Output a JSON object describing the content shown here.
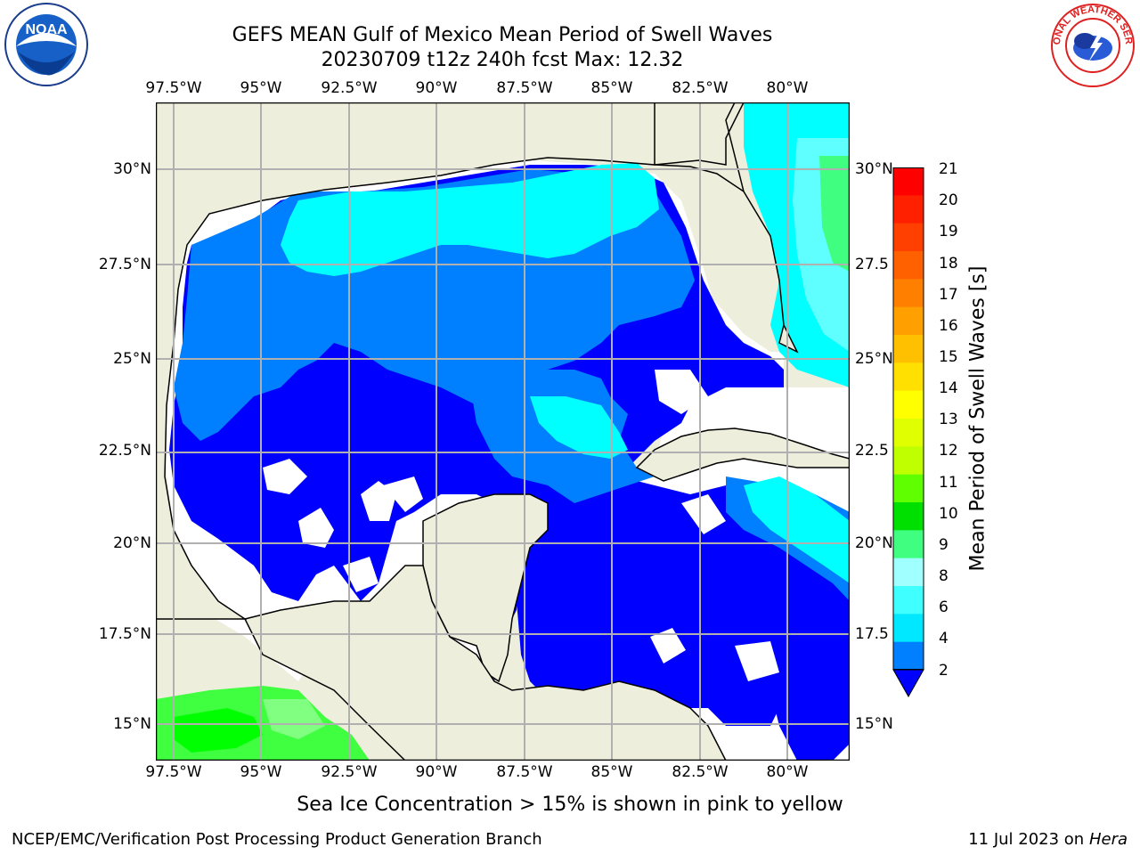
{
  "title": {
    "line1": "GEFS MEAN Gulf of Mexico Mean Period of Swell Waves",
    "line2": "20230709 t12z 240h fcst   Max: 12.32"
  },
  "axes": {
    "longitude_labels": [
      "97.5°W",
      "95°W",
      "92.5°W",
      "90°W",
      "87.5°W",
      "85°W",
      "82.5°W",
      "80°W"
    ],
    "latitude_labels": [
      "30°N",
      "27.5°N",
      "25°N",
      "22.5°N",
      "20°N",
      "17.5°N",
      "15°N"
    ],
    "right_latitude_labels": [
      "30°N",
      "27.5",
      "25°N",
      "22.5",
      "20°N",
      "17.5",
      "15°N"
    ]
  },
  "colorbar": {
    "label": "Mean Period of Swell Waves [s]",
    "ticks": [
      "21",
      "20",
      "19",
      "18",
      "17",
      "16",
      "15",
      "14",
      "13",
      "12",
      "11",
      "10",
      "9",
      "8",
      "6",
      "4",
      "2"
    ],
    "colors_top_to_bottom": [
      "#ff0000",
      "#ff2000",
      "#ff4000",
      "#ff6000",
      "#ff8000",
      "#ffa000",
      "#ffc000",
      "#ffe000",
      "#ffff00",
      "#e0ff00",
      "#c0ff00",
      "#60ff00",
      "#00e000",
      "#40ff80",
      "#a0ffff",
      "#40ffff",
      "#00e8ff",
      "#0080ff"
    ],
    "under_color": "#0000ff"
  },
  "map": {
    "land_color": "#eeeedc",
    "ocean_nodata_color": "#ffffff",
    "grid_color": "#b0b0b0",
    "palette": {
      "deep_blue": "#0000ff",
      "mid_blue": "#0080ff",
      "cyan": "#00ffff",
      "light_cyan": "#60ffff",
      "green": "#40ff40",
      "bright_green": "#00ff00",
      "pale_green": "#80ff80"
    }
  },
  "logos": {
    "noaa": "NOAA",
    "nws": "NATIONAL WEATHER SERVICE"
  },
  "sea_ice_note": "Sea Ice Concentration > 15% is shown in pink to yellow",
  "footer": {
    "left": "NCEP/EMC/Verification Post Processing Product Generation Branch",
    "date": "11 Jul 2023 on ",
    "machine": "Hera"
  }
}
